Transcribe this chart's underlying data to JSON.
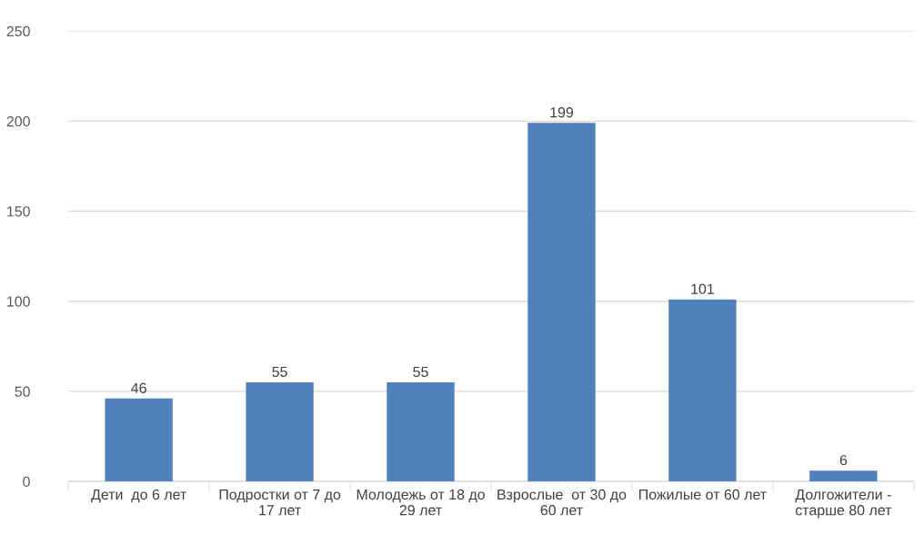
{
  "chart_data": {
    "type": "bar",
    "categories": [
      "Дети  до 6 лет",
      "Подростки от 7 до 17 лет",
      "Молодежь от 18 до 29 лет",
      "Взрослые  от 30 до 60 лет",
      "Пожилые от 60 лет",
      "Долгожители - старше 80 лет"
    ],
    "values": [
      46,
      55,
      55,
      199,
      101,
      6
    ],
    "color": "#4f81bd",
    "ylim": [
      0,
      250
    ],
    "yticks": [
      0,
      50,
      100,
      150,
      200,
      250
    ],
    "grid": "y",
    "data_labels": true,
    "legend": false
  }
}
